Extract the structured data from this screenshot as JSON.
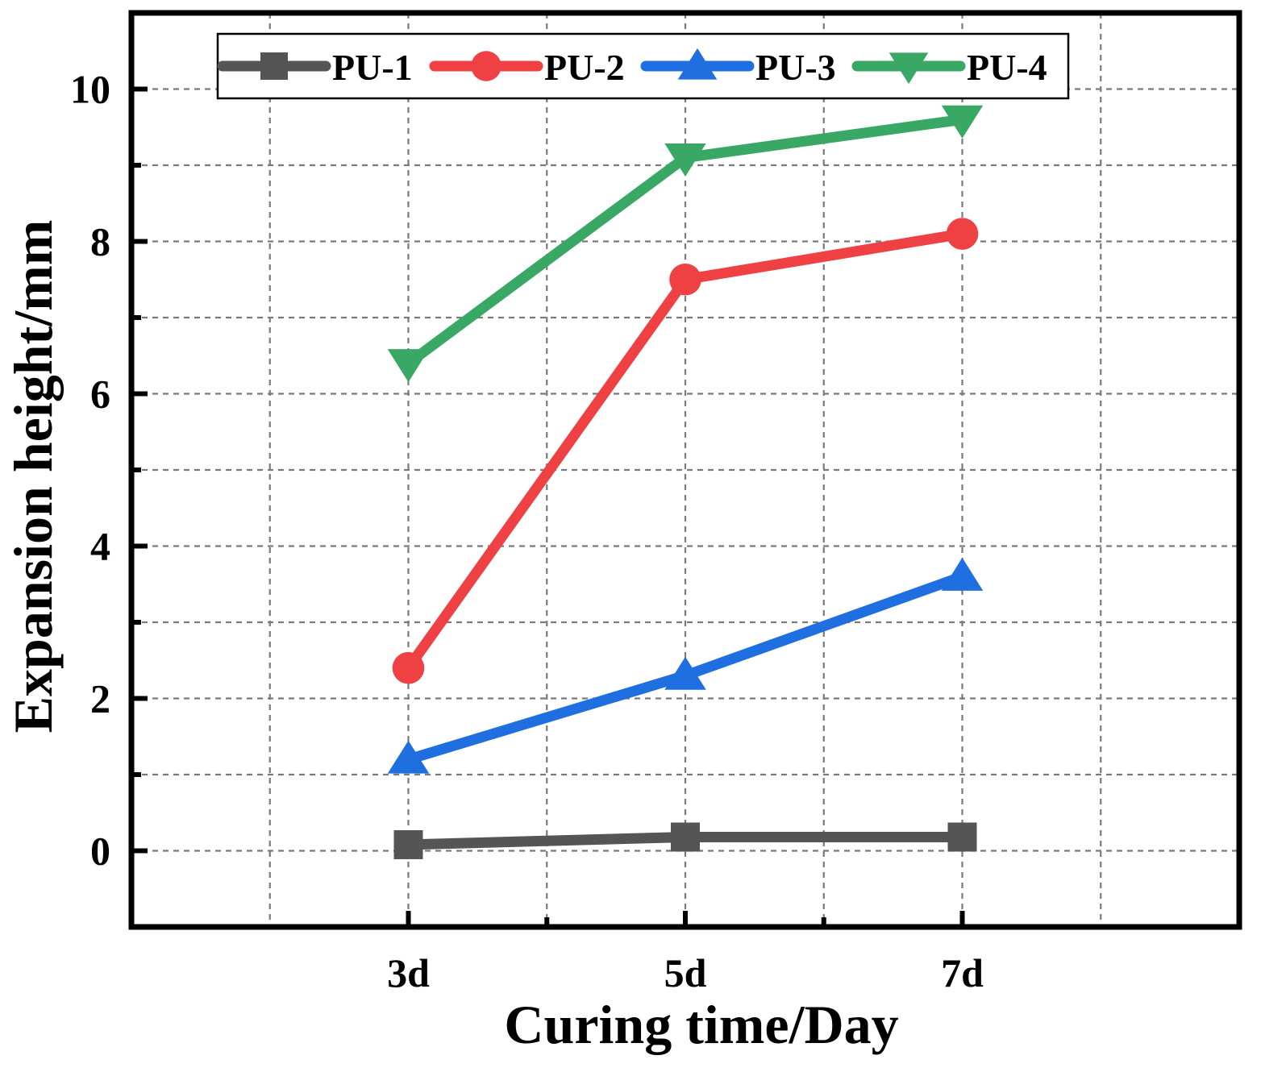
{
  "chart_data": {
    "type": "line",
    "title": "",
    "xlabel": "Curing time/Day",
    "ylabel": "Expansion height/mm",
    "categories": [
      "3d",
      "5d",
      "7d"
    ],
    "ylim": [
      -1,
      11
    ],
    "yticks": [
      0,
      2,
      4,
      6,
      8,
      10
    ],
    "grid": true,
    "legend_position": "top",
    "series": [
      {
        "name": "PU-1",
        "color": "#555555",
        "marker": "square",
        "values": [
          0.08,
          0.18,
          0.18
        ]
      },
      {
        "name": "PU-2",
        "color": "#ef4043",
        "marker": "circle",
        "values": [
          2.4,
          7.5,
          8.1
        ]
      },
      {
        "name": "PU-3",
        "color": "#1f6fe0",
        "marker": "triangle-up",
        "values": [
          1.2,
          2.3,
          3.6
        ]
      },
      {
        "name": "PU-4",
        "color": "#3aa865",
        "marker": "triangle-down",
        "values": [
          6.4,
          9.1,
          9.6
        ]
      }
    ]
  }
}
